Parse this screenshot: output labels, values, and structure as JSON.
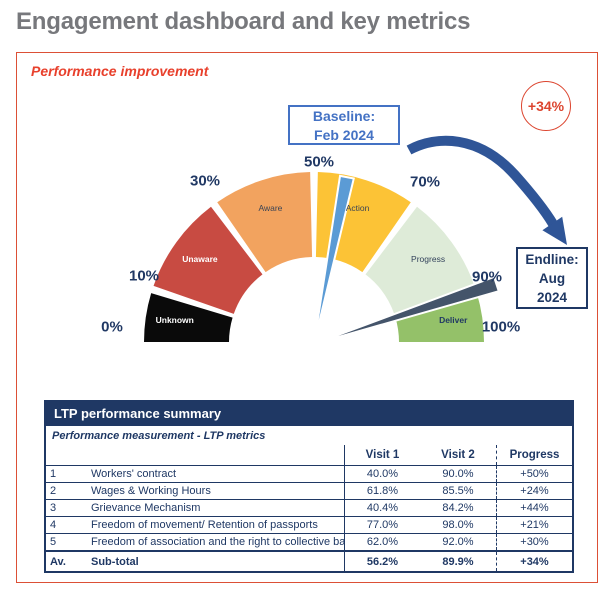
{
  "page_title": "Engagement dashboard and key metrics",
  "panel": {
    "heading": "Performance improvement",
    "badge_text": "+34%",
    "baseline_box": {
      "line1": "Baseline:",
      "line2": "Feb 2024"
    },
    "endline_box": {
      "line1": "Endline:",
      "line2": "Aug",
      "line3": "2024"
    },
    "colors": {
      "panel_border": "#DC5036",
      "heading": "#E8402C",
      "badge": "#DC452F",
      "baseline_blue": "#4472C4",
      "endline_navy": "#1F3864",
      "arrow_blue": "#2F5597",
      "tick_navy": "#203864",
      "table_navy": "#1F3864",
      "title_gray": "#77787C"
    }
  },
  "gauge": {
    "ticks": [
      "0%",
      "10%",
      "30%",
      "50%",
      "70%",
      "90%",
      "100%"
    ],
    "segments": [
      {
        "label": "Unknown",
        "range": [
          0,
          10
        ],
        "color": "#0A0A0A",
        "label_color": "#FFFFFF",
        "label_bold": true
      },
      {
        "label": "Unaware",
        "range": [
          10,
          30
        ],
        "color": "#C84B42",
        "label_color": "#FFFFFF",
        "label_bold": true
      },
      {
        "label": "Aware",
        "range": [
          30,
          50
        ],
        "color": "#F2A35F",
        "label_color": "#3B4454",
        "label_bold": false
      },
      {
        "label": "Action",
        "range": [
          50,
          70
        ],
        "color": "#FCC336",
        "label_color": "#3B4454",
        "label_bold": false
      },
      {
        "label": "Progress",
        "range": [
          70,
          90
        ],
        "color": "#DEEBD8",
        "label_color": "#33425B",
        "label_bold": false
      },
      {
        "label": "Deliver",
        "range": [
          90,
          100
        ],
        "color": "#94C169",
        "label_color": "#203864",
        "label_bold": true
      }
    ],
    "needles": [
      {
        "name": "baseline-needle",
        "value": 56.2,
        "color": "#5B9BD5",
        "length": 170,
        "width": 7
      },
      {
        "name": "endline-needle",
        "value": 89.9,
        "color": "#44546A",
        "length": 192,
        "width": 7.5
      }
    ]
  },
  "table": {
    "title": "LTP performance summary",
    "subtitle": "Performance measurement - LTP metrics",
    "columns": [
      "Visit 1",
      "Visit 2",
      "Progress"
    ],
    "rows": [
      {
        "num": "1",
        "name": "Workers' contract",
        "visit1": "40.0%",
        "visit2": "90.0%",
        "progress": "+50%"
      },
      {
        "num": "2",
        "name": "Wages & Working Hours",
        "visit1": "61.8%",
        "visit2": "85.5%",
        "progress": "+24%"
      },
      {
        "num": "3",
        "name": "Grievance Mechanism",
        "visit1": "40.4%",
        "visit2": "84.2%",
        "progress": "+44%"
      },
      {
        "num": "4",
        "name": "Freedom of movement/ Retention of passports",
        "visit1": "77.0%",
        "visit2": "98.0%",
        "progress": "+21%"
      },
      {
        "num": "5",
        "name": "Freedom of association and the right to collective bargai",
        "visit1": "62.0%",
        "visit2": "92.0%",
        "progress": "+30%"
      }
    ],
    "total": {
      "num": "Av.",
      "name": "Sub-total",
      "visit1": "56.2%",
      "visit2": "89.9%",
      "progress": "+34%"
    }
  },
  "chart_data": {
    "type": "gauge",
    "title": "Performance improvement",
    "axis_range": [
      0,
      100
    ],
    "ticks": [
      "0%",
      "10%",
      "30%",
      "50%",
      "70%",
      "90%",
      "100%"
    ],
    "segments": [
      {
        "label": "Unknown",
        "from": 0,
        "to": 10
      },
      {
        "label": "Unaware",
        "from": 10,
        "to": 30
      },
      {
        "label": "Aware",
        "from": 30,
        "to": 50
      },
      {
        "label": "Action",
        "from": 50,
        "to": 70
      },
      {
        "label": "Progress",
        "from": 70,
        "to": 90
      },
      {
        "label": "Deliver",
        "from": 90,
        "to": 100
      }
    ],
    "needles": [
      {
        "name": "Baseline: Feb 2024",
        "value": 56.2
      },
      {
        "name": "Endline: Aug 2024",
        "value": 89.9
      }
    ],
    "annotation": "+34%"
  }
}
